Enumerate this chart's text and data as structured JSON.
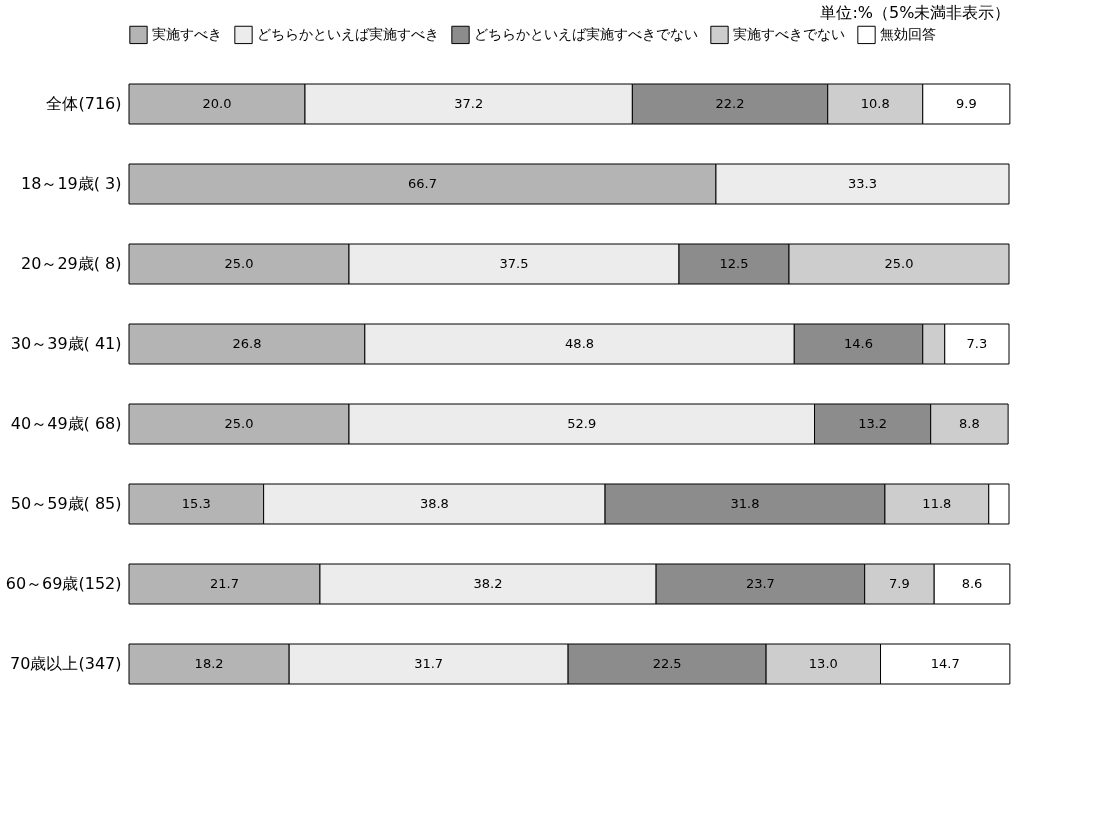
{
  "chart_data": {
    "type": "bar",
    "orientation": "horizontal",
    "stacked": true,
    "categories": [
      "全体(716)",
      "18～19歳(  3)",
      "20～29歳(  8)",
      "30～39歳( 41)",
      "40～49歳( 68)",
      "50～59歳( 85)",
      "60～69歳(152)",
      "70歳以上(347)"
    ],
    "series": [
      {
        "name": "実施すべき",
        "color": "#b4b4b4",
        "values": [
          20.0,
          66.7,
          25.0,
          26.8,
          25.0,
          15.3,
          21.7,
          18.2
        ],
        "value_labels": [
          "20.0",
          "66.7",
          "25.0",
          "26.8",
          "25.0",
          "15.3",
          "21.7",
          "18.2"
        ]
      },
      {
        "name": "どちらかといえば実施すべき",
        "color": "#ececec",
        "values": [
          37.2,
          33.3,
          37.5,
          48.8,
          52.9,
          38.8,
          38.2,
          31.7
        ],
        "value_labels": [
          "37.2",
          "33.3",
          "37.5",
          "48.8",
          "52.9",
          "38.8",
          "38.2",
          "31.7"
        ]
      },
      {
        "name": "どちらかといえば実施すべきでない",
        "color": "#8c8c8c",
        "values": [
          22.2,
          null,
          12.5,
          14.6,
          13.2,
          31.8,
          23.7,
          22.5
        ],
        "value_labels": [
          "22.2",
          null,
          "12.5",
          "14.6",
          "13.2",
          "31.8",
          "23.7",
          "22.5"
        ]
      },
      {
        "name": "実施すべきでない",
        "color": "#cdcdcd",
        "values": [
          10.8,
          null,
          25.0,
          2.5,
          8.8,
          11.8,
          7.9,
          13.0
        ],
        "value_labels": [
          "10.8",
          null,
          "25.0",
          null,
          "8.8",
          "11.8",
          "7.9",
          "13.0"
        ]
      },
      {
        "name": "無効回答",
        "color": "#ffffff",
        "values": [
          9.9,
          null,
          null,
          7.3,
          null,
          2.3,
          8.6,
          14.7
        ],
        "value_labels": [
          "9.9",
          null,
          null,
          "7.3",
          null,
          null,
          "8.6",
          "14.7"
        ]
      }
    ],
    "xlim": [
      0,
      100
    ],
    "tick_labels": "y",
    "legend": "top",
    "grid": false,
    "annotations": [
      "単位:%（5%未満非表示）"
    ]
  }
}
